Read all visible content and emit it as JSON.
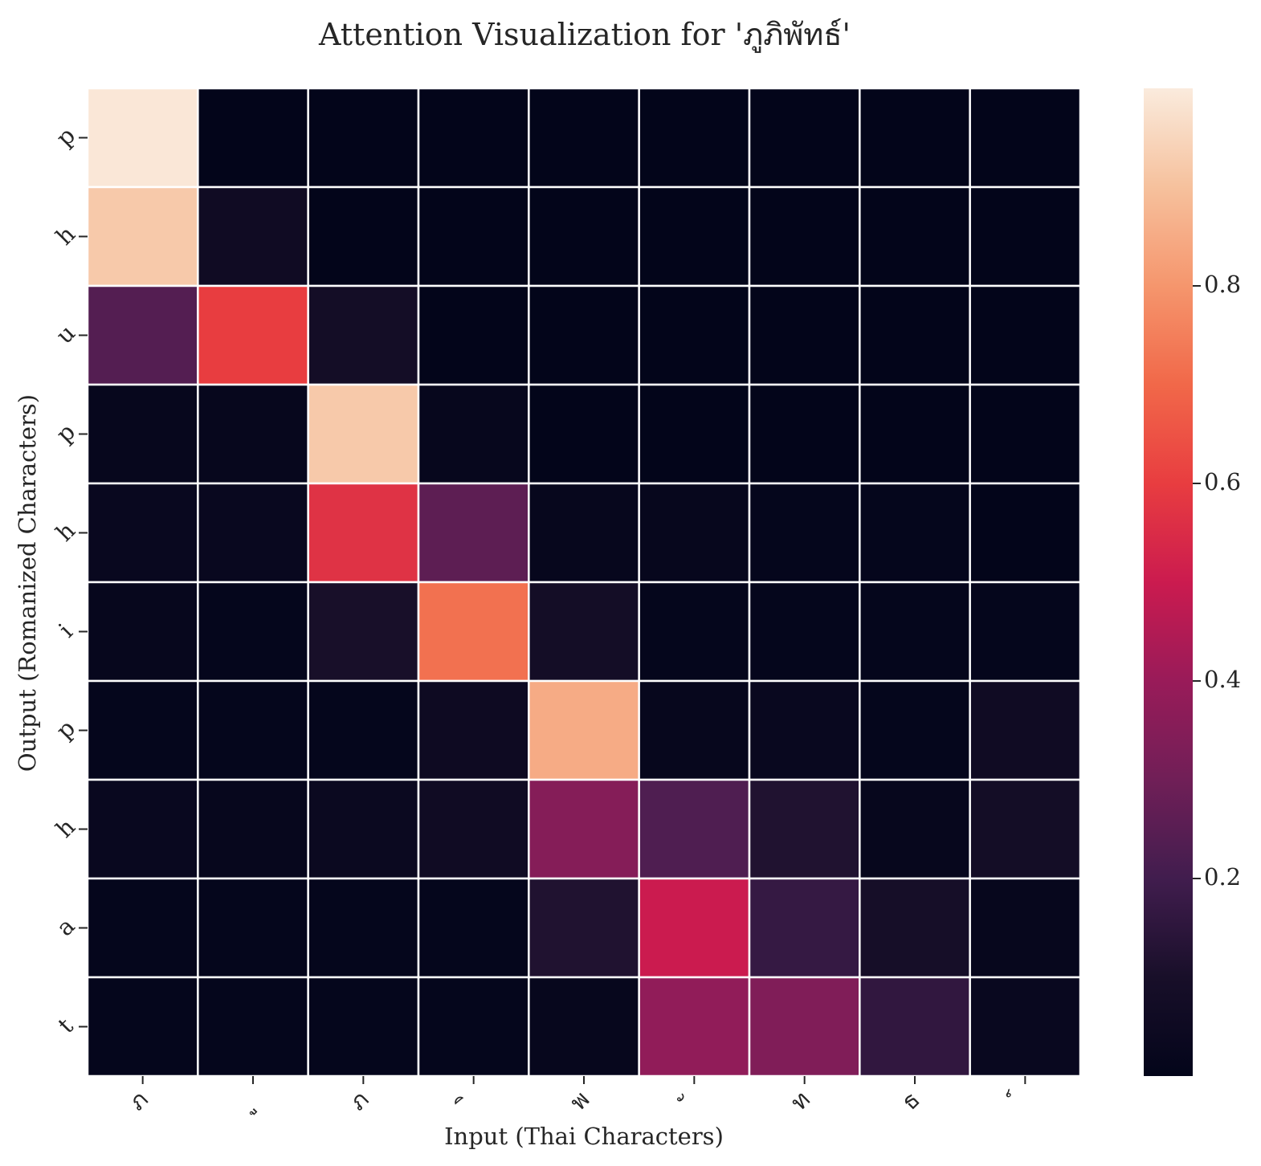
{
  "chart_data": {
    "type": "heatmap",
    "title": "Attention Visualization for 'ภูภิพัทธ์'",
    "xlabel": "Input (Thai Characters)",
    "ylabel": "Output (Romanized Characters)",
    "x_tick_labels": [
      "ภ",
      "ู",
      "ภ",
      "ิ",
      "พ",
      "ั",
      "ท",
      "ธ",
      "์"
    ],
    "y_tick_labels": [
      "p",
      "h",
      "u",
      "p",
      "h",
      "i",
      "p",
      "h",
      "a",
      "t"
    ],
    "values": [
      [
        0.99,
        0.0,
        0.0,
        0.0,
        0.0,
        0.0,
        0.0,
        0.0,
        0.0
      ],
      [
        0.92,
        0.06,
        0.0,
        0.0,
        0.0,
        0.0,
        0.0,
        0.0,
        0.0
      ],
      [
        0.24,
        0.6,
        0.08,
        0.0,
        0.0,
        0.0,
        0.0,
        0.0,
        0.0
      ],
      [
        0.02,
        0.02,
        0.92,
        0.02,
        0.0,
        0.0,
        0.0,
        0.0,
        0.0
      ],
      [
        0.03,
        0.03,
        0.57,
        0.26,
        0.02,
        0.02,
        0.01,
        0.01,
        0.0
      ],
      [
        0.02,
        0.01,
        0.1,
        0.72,
        0.08,
        0.01,
        0.01,
        0.01,
        0.01
      ],
      [
        0.01,
        0.01,
        0.01,
        0.05,
        0.85,
        0.02,
        0.03,
        0.01,
        0.06
      ],
      [
        0.03,
        0.02,
        0.04,
        0.06,
        0.35,
        0.23,
        0.12,
        0.02,
        0.08
      ],
      [
        0.01,
        0.01,
        0.01,
        0.01,
        0.12,
        0.5,
        0.17,
        0.09,
        0.02
      ],
      [
        0.01,
        0.01,
        0.01,
        0.01,
        0.02,
        0.38,
        0.34,
        0.16,
        0.03
      ]
    ],
    "colorbar": {
      "ticks": [
        0.2,
        0.4,
        0.6,
        0.8
      ],
      "tick_labels": [
        "0.2",
        "0.4",
        "0.6",
        "0.8"
      ],
      "min": 0.0,
      "max": 1.0
    },
    "colormap": "rocket",
    "grid": false,
    "legend": "colorbar-right"
  }
}
